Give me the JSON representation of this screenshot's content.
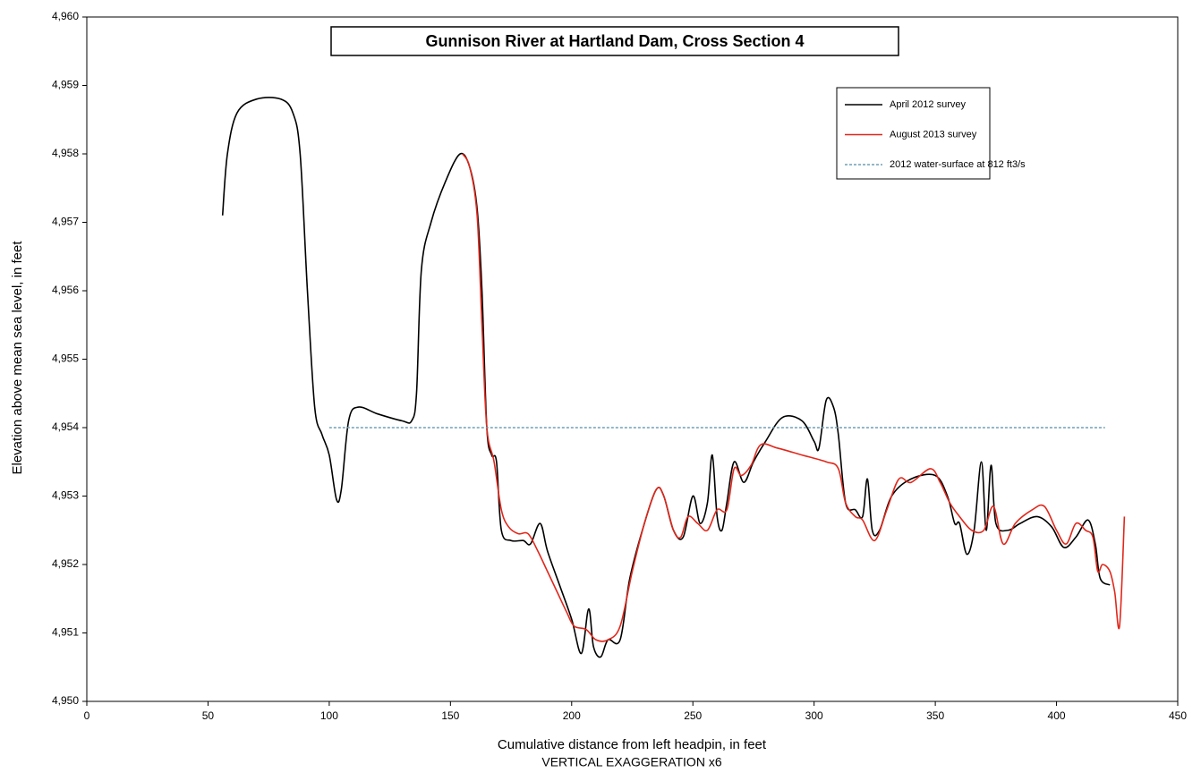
{
  "chart_data": {
    "type": "line",
    "title": "Gunnison River at Hartland Dam, Cross Section 4",
    "x_label": "Cumulative distance from left headpin, in feet",
    "x_label_2": "VERTICAL EXAGGERATION  x6",
    "y_label": "Elevation above mean sea level, in feet",
    "xlim": [
      0,
      450
    ],
    "xticks": [
      0,
      50,
      100,
      150,
      200,
      250,
      300,
      350,
      400,
      450
    ],
    "ylim": [
      4950,
      4960
    ],
    "yticks": [
      {
        "value": 4950,
        "label": "4,950"
      },
      {
        "value": 4951,
        "label": "4,951"
      },
      {
        "value": 4952,
        "label": "4,952"
      },
      {
        "value": 4953,
        "label": "4,953"
      },
      {
        "value": 4954,
        "label": "4,954"
      },
      {
        "value": 4955,
        "label": "4,955"
      },
      {
        "value": 4956,
        "label": "4,956"
      },
      {
        "value": 4957,
        "label": "4,957"
      },
      {
        "value": 4958,
        "label": "4,958"
      },
      {
        "value": 4959,
        "label": "4,959"
      },
      {
        "value": 4960,
        "label": "4,960"
      }
    ],
    "legend": "upper right",
    "series": [
      {
        "name": "April 2012 survey",
        "color": "#000000",
        "dashed": false,
        "x": [
          56,
          58,
          62,
          70,
          80,
          85,
          88,
          91,
          94,
          97,
          100,
          103,
          105,
          108,
          112,
          120,
          130,
          134,
          136,
          138,
          142,
          148,
          154,
          158,
          161,
          163,
          165,
          167,
          169,
          171,
          175,
          180,
          183,
          187,
          190,
          195,
          200,
          204,
          207,
          209,
          212,
          215,
          220,
          224,
          230,
          235,
          238,
          242,
          246,
          250,
          253,
          256,
          258,
          260,
          262,
          264,
          267,
          271,
          275,
          280,
          287,
          295,
          300,
          302,
          305,
          308,
          310,
          313,
          317,
          320,
          322,
          324,
          327,
          332,
          340,
          350,
          355,
          358,
          360,
          363,
          366,
          369,
          371,
          373,
          375,
          380,
          385,
          392,
          398,
          403,
          408,
          413,
          416,
          418,
          422
        ],
        "values": [
          4957.1,
          4958.0,
          4958.6,
          4958.8,
          4958.8,
          4958.6,
          4958.0,
          4956.0,
          4954.3,
          4953.9,
          4953.6,
          4952.95,
          4953.1,
          4954.1,
          4954.3,
          4954.2,
          4954.1,
          4954.1,
          4954.5,
          4956.3,
          4957.0,
          4957.6,
          4958.0,
          4957.8,
          4957.2,
          4956.0,
          4954.0,
          4953.6,
          4953.5,
          4952.5,
          4952.35,
          4952.35,
          4952.3,
          4952.6,
          4952.2,
          4951.7,
          4951.2,
          4950.7,
          4951.35,
          4950.8,
          4950.65,
          4950.9,
          4950.9,
          4951.8,
          4952.6,
          4953.1,
          4953.0,
          4952.5,
          4952.4,
          4953.0,
          4952.6,
          4952.9,
          4953.6,
          4952.7,
          4952.5,
          4952.9,
          4953.5,
          4953.2,
          4953.5,
          4953.8,
          4954.15,
          4954.1,
          4953.8,
          4953.7,
          4954.4,
          4954.3,
          4953.9,
          4952.9,
          4952.8,
          4952.7,
          4953.25,
          4952.5,
          4952.5,
          4953.0,
          4953.25,
          4953.3,
          4953.0,
          4952.6,
          4952.6,
          4952.15,
          4952.5,
          4953.5,
          4952.5,
          4953.45,
          4952.6,
          4952.5,
          4952.6,
          4952.7,
          4952.55,
          4952.25,
          4952.4,
          4952.65,
          4952.3,
          4951.8,
          4951.7
        ]
      },
      {
        "name": "August 2013 survey",
        "color": "#e0271b",
        "dashed": false,
        "x": [
          155,
          158,
          161,
          163,
          165,
          168,
          171,
          174,
          178,
          182,
          186,
          190,
          194,
          198,
          201,
          206,
          210,
          215,
          220,
          225,
          230,
          235,
          238,
          242,
          245,
          248,
          252,
          256,
          260,
          264,
          267,
          270,
          274,
          278,
          285,
          295,
          305,
          310,
          313,
          317,
          320,
          325,
          330,
          335,
          340,
          348,
          352,
          356,
          360,
          365,
          370,
          374,
          378,
          383,
          390,
          395,
          400,
          404,
          408,
          412,
          415,
          417,
          419,
          422,
          424,
          426,
          428
        ],
        "values": [
          4958.0,
          4957.8,
          4957.1,
          4955.5,
          4954.0,
          4953.5,
          4952.8,
          4952.55,
          4952.45,
          4952.45,
          4952.2,
          4951.9,
          4951.6,
          4951.3,
          4951.1,
          4951.05,
          4950.9,
          4950.9,
          4951.1,
          4951.9,
          4952.6,
          4953.1,
          4953.0,
          4952.5,
          4952.4,
          4952.7,
          4952.6,
          4952.5,
          4952.8,
          4952.8,
          4953.4,
          4953.3,
          4953.45,
          4953.75,
          4953.7,
          4953.6,
          4953.5,
          4953.4,
          4952.9,
          4952.7,
          4952.65,
          4952.35,
          4952.8,
          4953.25,
          4953.2,
          4953.4,
          4953.2,
          4952.9,
          4952.7,
          4952.5,
          4952.5,
          4952.85,
          4952.3,
          4952.6,
          4952.8,
          4952.85,
          4952.5,
          4952.3,
          4952.6,
          4952.5,
          4952.4,
          4951.9,
          4952.0,
          4951.9,
          4951.6,
          4951.1,
          4952.7
        ]
      },
      {
        "name": "2012 water-surface at 812 ft3/s",
        "color": "#6f9fb5",
        "dashed": true,
        "x": [
          100,
          420
        ],
        "values": [
          4954,
          4954
        ]
      }
    ]
  }
}
